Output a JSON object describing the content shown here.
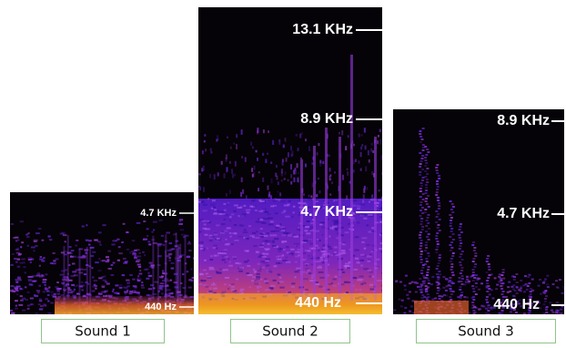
{
  "panels": [
    {
      "labels": [
        "4.7 KHz",
        "440 Hz"
      ],
      "caption": "Sound 1"
    },
    {
      "labels": [
        "13.1 KHz",
        "8.9 KHz",
        "4.7 KHz",
        "440 Hz"
      ],
      "caption": "Sound 2"
    },
    {
      "labels": [
        "8.9 KHz",
        "4.7 KHz",
        "440 Hz"
      ],
      "caption": "Sound 3"
    }
  ]
}
